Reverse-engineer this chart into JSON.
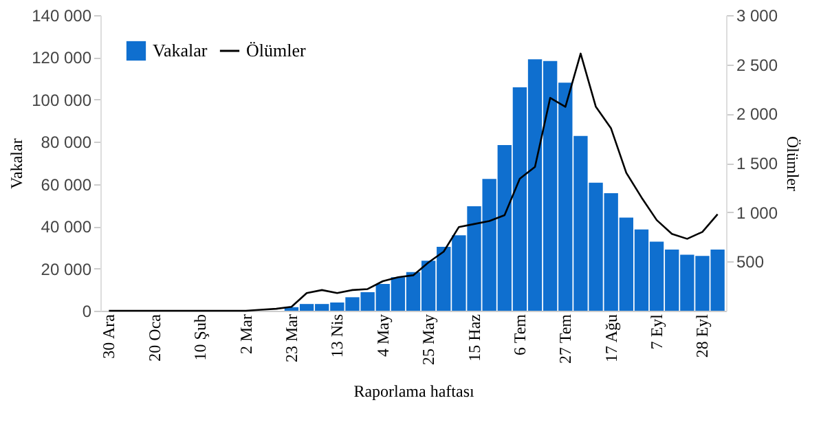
{
  "chart_data": {
    "type": "bar",
    "xlabel": "Raporlama haftası",
    "ylabel": "Vakalar",
    "y2label": "Ölümler",
    "categories": [
      "30 Ara",
      null,
      null,
      "20 Oca",
      null,
      null,
      "10 Şub",
      null,
      null,
      "2 Mar",
      null,
      null,
      "23 Mar",
      null,
      null,
      "13 Nis",
      null,
      null,
      "4 May",
      null,
      null,
      "25 May",
      null,
      null,
      "15 Haz",
      null,
      null,
      "6 Tem",
      null,
      null,
      "27 Tem",
      null,
      null,
      "17 Ağu",
      null,
      null,
      "7 Eyl",
      null,
      null,
      "28 Eyl",
      null
    ],
    "series": [
      {
        "name": "Vakalar",
        "color": "#0f6fcf",
        "values": [
          0,
          0,
          0,
          0,
          0,
          0,
          0,
          0,
          0,
          0,
          0,
          0,
          1700,
          3200,
          3200,
          3900,
          6400,
          8800,
          12700,
          15900,
          18300,
          23700,
          30300,
          35700,
          49500,
          62400,
          78500,
          105800,
          119100,
          118300,
          108000,
          82800,
          60600,
          55700,
          44100,
          38500,
          32700,
          29000,
          26500,
          26000,
          29000
        ]
      },
      {
        "name": "Ölümler",
        "type": "line",
        "color": "#000000",
        "axis": "y2",
        "values": [
          0,
          0,
          0,
          0,
          0,
          0,
          0,
          0,
          0,
          0,
          10,
          20,
          40,
          180,
          210,
          180,
          210,
          220,
          300,
          340,
          360,
          490,
          600,
          850,
          880,
          910,
          970,
          1340,
          1460,
          2160,
          2070,
          2610,
          2070,
          1850,
          1400,
          1150,
          920,
          780,
          730,
          800,
          980
        ]
      }
    ],
    "ylim": [
      0,
      140000
    ],
    "yticks": [
      0,
      {
        "value": 20000,
        "label": "20 000"
      },
      {
        "value": 40000,
        "label": "40 000"
      },
      {
        "value": 60000,
        "label": "60 000"
      },
      {
        "value": 80000,
        "label": "80 000"
      },
      {
        "value": 100000,
        "label": "100 000"
      },
      {
        "value": 120000,
        "label": "120 000"
      },
      {
        "value": 140000,
        "label": "140 000"
      }
    ],
    "y2lim": [
      0,
      3000
    ],
    "y2ticks": [
      500,
      {
        "value": 1000,
        "label": "1 000"
      },
      {
        "value": 1500,
        "label": "1 500"
      },
      {
        "value": 2000,
        "label": "2 000"
      },
      {
        "value": 2500,
        "label": "2 500"
      },
      {
        "value": 3000,
        "label": "3 000"
      }
    ],
    "legend": "top left",
    "grid": false,
    "line_style": "solid"
  }
}
